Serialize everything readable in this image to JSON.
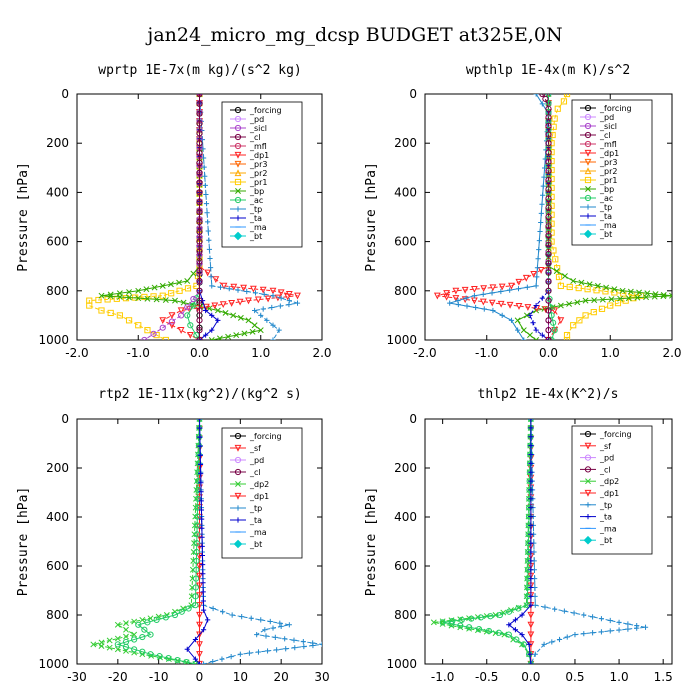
{
  "figure": {
    "title": "jan24_micro_mg_dcsp  BUDGET at325E,0N"
  },
  "chart_data": [
    {
      "type": "line",
      "title": "wprtp  1E-7x(m kg)/(s^2 kg)",
      "ylabel": "Pressure [hPa]",
      "xlabel": "",
      "xlim": [
        -2.0,
        2.0
      ],
      "ylim": [
        1000,
        0
      ],
      "x_ticks": [
        "-2.0",
        "-1.0",
        "0.0",
        "1.0",
        "2.0"
      ],
      "y_ticks": [
        "0",
        "200",
        "400",
        "600",
        "800",
        "1000"
      ],
      "legend": [
        "_forcing",
        "_pd",
        "_sicl",
        "_cl",
        "_mfl",
        "_dp1",
        "_pr3",
        "_pr2",
        "_pr1",
        "_bp",
        "_ac",
        "_tp",
        "_ta",
        "_ma",
        "_bt"
      ],
      "series": [
        {
          "name": "_forcing",
          "color": "#000000",
          "marker": "o",
          "y": [
            0,
            200,
            400,
            600,
            700,
            800,
            850,
            900,
            950,
            1000
          ],
          "values": [
            0,
            0,
            0,
            0,
            0,
            0,
            0,
            0,
            0,
            0
          ]
        },
        {
          "name": "_pr1",
          "color": "#ffcc00",
          "marker": "s",
          "y": [
            0,
            700,
            780,
            820,
            840,
            860,
            880,
            900,
            940,
            980,
            1000
          ],
          "values": [
            0,
            0,
            -0.05,
            -0.6,
            -1.8,
            -1.8,
            -1.6,
            -1.3,
            -1.0,
            -0.7,
            -0.55
          ]
        },
        {
          "name": "_bp",
          "color": "#33aa00",
          "marker": "x",
          "y": [
            0,
            700,
            760,
            800,
            820,
            840,
            880,
            920,
            960,
            1000
          ],
          "values": [
            0,
            0,
            -0.2,
            -1.0,
            -1.6,
            -0.4,
            0.3,
            0.8,
            1.0,
            0.2
          ]
        },
        {
          "name": "_dp1",
          "color": "#ff2222",
          "marker": "v",
          "y": [
            0,
            700,
            780,
            800,
            820,
            840,
            880,
            920,
            960,
            1000
          ],
          "values": [
            0,
            0.0,
            0.4,
            1.2,
            1.6,
            0.8,
            -0.3,
            -0.6,
            -0.3,
            0.0
          ]
        },
        {
          "name": "_ac",
          "color": "#22cc66",
          "marker": "o",
          "y": [
            0,
            800,
            860,
            900,
            940,
            980,
            1000
          ],
          "values": [
            0,
            0,
            -0.1,
            -0.2,
            -0.15,
            -0.05,
            0
          ]
        },
        {
          "name": "_tp",
          "color": "#2288cc",
          "marker": "+",
          "y": [
            0,
            780,
            820,
            850,
            880,
            920,
            960,
            1000
          ],
          "values": [
            0,
            0.2,
            1.2,
            1.6,
            0.9,
            1.1,
            1.3,
            1.2
          ]
        },
        {
          "name": "_ta",
          "color": "#0000cc",
          "marker": "+",
          "y": [
            0,
            800,
            880,
            920,
            960,
            1000
          ],
          "values": [
            0,
            0,
            0.1,
            0.3,
            0.2,
            0
          ]
        },
        {
          "name": "_sicl",
          "color": "#aa44cc",
          "marker": "o",
          "y": [
            0,
            800,
            900,
            950,
            1000
          ],
          "values": [
            0,
            0,
            -0.3,
            -0.6,
            -0.9
          ]
        },
        {
          "name": "_cl",
          "color": "#770044",
          "marker": "o",
          "y": [
            0,
            200,
            400,
            600,
            800,
            1000
          ],
          "values": [
            0,
            0,
            0,
            0,
            0,
            0
          ]
        }
      ]
    },
    {
      "type": "line",
      "title": "wpthlp  1E-4x(m K)/s^2",
      "ylabel": "Pressure [hPa]",
      "xlabel": "",
      "xlim": [
        -2.0,
        2.0
      ],
      "ylim": [
        1000,
        0
      ],
      "x_ticks": [
        "-2.0",
        "-1.0",
        "0.0",
        "1.0",
        "2.0"
      ],
      "y_ticks": [
        "0",
        "200",
        "400",
        "600",
        "800",
        "1000"
      ],
      "legend": [
        "_forcing",
        "_pd",
        "_sicl",
        "_cl",
        "_mfl",
        "_dp1",
        "_pr3",
        "_pr2",
        "_pr1",
        "_bp",
        "_ac",
        "_tp",
        "_ta",
        "_ma",
        "_bt"
      ],
      "series": [
        {
          "name": "_forcing",
          "color": "#aa44cc",
          "marker": "o",
          "y": [
            0,
            200,
            400,
            600,
            800,
            1000
          ],
          "values": [
            0,
            0,
            0,
            0,
            0,
            0
          ]
        },
        {
          "name": "_pr1",
          "color": "#ffcc00",
          "marker": "s",
          "y": [
            0,
            30,
            60,
            100,
            200,
            600,
            780,
            820,
            860,
            900,
            940,
            980,
            1000
          ],
          "values": [
            0.3,
            0.25,
            0.15,
            0.1,
            0.05,
            0.05,
            0.2,
            1.5,
            1.0,
            0.6,
            0.4,
            0.3,
            0.3
          ]
        },
        {
          "name": "_bp",
          "color": "#33aa00",
          "marker": "x",
          "y": [
            0,
            700,
            760,
            800,
            820,
            840,
            880,
            920,
            960,
            1000
          ],
          "values": [
            0,
            0,
            0.4,
            1.2,
            2.0,
            0.6,
            -0.2,
            -0.5,
            -0.4,
            -0.2
          ]
        },
        {
          "name": "_dp1",
          "color": "#ff2222",
          "marker": "v",
          "y": [
            0,
            700,
            780,
            800,
            820,
            840,
            880,
            920,
            960,
            1000
          ],
          "values": [
            0,
            0,
            -0.6,
            -1.5,
            -1.8,
            -1.2,
            0.1,
            0.2,
            0.1,
            0
          ]
        },
        {
          "name": "_tp",
          "color": "#2288cc",
          "marker": "+",
          "y": [
            0,
            40,
            80,
            780,
            820,
            850,
            880,
            920,
            960,
            1000
          ],
          "values": [
            -0.2,
            -0.1,
            0,
            -0.2,
            -1.2,
            -1.6,
            -0.9,
            -0.6,
            -0.5,
            -0.4
          ]
        },
        {
          "name": "_ta",
          "color": "#0000cc",
          "marker": "+",
          "y": [
            0,
            800,
            860,
            900,
            960,
            1000
          ],
          "values": [
            0,
            0,
            -0.2,
            -0.3,
            -0.2,
            0
          ]
        },
        {
          "name": "_ac",
          "color": "#22cc66",
          "marker": "o",
          "y": [
            0,
            800,
            900,
            960,
            1000
          ],
          "values": [
            0,
            0,
            0.05,
            0.1,
            0.05
          ]
        },
        {
          "name": "_sicl",
          "color": "#770044",
          "marker": "o",
          "y": [
            0,
            20,
            60,
            200,
            800,
            1000
          ],
          "values": [
            -0.1,
            -0.05,
            0,
            0,
            0,
            0
          ]
        }
      ]
    },
    {
      "type": "line",
      "title": "rtp2  1E-11x(kg^2)/(kg^2 s)",
      "ylabel": "Pressure [hPa]",
      "xlabel": "",
      "xlim": [
        -30,
        30
      ],
      "ylim": [
        1000,
        0
      ],
      "x_ticks": [
        "-30",
        "-20",
        "-10",
        "0",
        "10",
        "20",
        "30"
      ],
      "y_ticks": [
        "0",
        "200",
        "400",
        "600",
        "800",
        "1000"
      ],
      "legend": [
        "_forcing",
        "_sf",
        "_pd",
        "_cl",
        "_dp2",
        "_dp1",
        "_tp",
        "_ta",
        "_ma",
        "_bt"
      ],
      "series": [
        {
          "name": "_forcing",
          "color": "#ff2222",
          "marker": "v",
          "y": [
            0,
            200,
            400,
            600,
            800,
            1000
          ],
          "values": [
            0,
            0,
            0,
            0,
            0,
            0
          ]
        },
        {
          "name": "_dp2",
          "color": "#33cc33",
          "marker": "x",
          "y": [
            0,
            760,
            800,
            840,
            880,
            920,
            960,
            1000
          ],
          "values": [
            0,
            -2,
            -8,
            -20,
            -16,
            -26,
            -14,
            -1
          ]
        },
        {
          "name": "_dp1",
          "color": "#22cc66",
          "marker": "o",
          "y": [
            0,
            760,
            800,
            840,
            880,
            920,
            960,
            1000
          ],
          "values": [
            0,
            -1,
            -6,
            -15,
            -12,
            -20,
            -12,
            -1
          ]
        },
        {
          "name": "_tp",
          "color": "#2288cc",
          "marker": "+",
          "y": [
            0,
            760,
            800,
            840,
            860,
            880,
            920,
            960,
            1000
          ],
          "values": [
            0,
            1,
            8,
            22,
            16,
            14,
            30,
            10,
            1
          ]
        },
        {
          "name": "_ta",
          "color": "#0000cc",
          "marker": "+",
          "y": [
            0,
            780,
            820,
            860,
            900,
            940,
            980,
            1000
          ],
          "values": [
            0,
            1,
            2,
            1,
            -1,
            -3,
            -1,
            0
          ]
        }
      ]
    },
    {
      "type": "line",
      "title": "thlp2  1E-4x(K^2)/s",
      "ylabel": "Pressure [hPa]",
      "xlabel": "",
      "xlim": [
        -1.2,
        1.6
      ],
      "ylim": [
        1000,
        0
      ],
      "x_ticks": [
        "-1.0",
        "-0.5",
        "0.0",
        "0.5",
        "1.0",
        "1.5"
      ],
      "y_ticks": [
        "0",
        "200",
        "400",
        "600",
        "800",
        "1000"
      ],
      "legend": [
        "_forcing",
        "_sf",
        "_pd",
        "_cl",
        "_dp2",
        "_dp1",
        "_tp",
        "_ta",
        "_ma",
        "_bt"
      ],
      "series": [
        {
          "name": "_forcing",
          "color": "#ff2222",
          "marker": "v",
          "y": [
            0,
            200,
            400,
            600,
            800,
            1000
          ],
          "values": [
            0,
            0,
            0,
            0,
            0,
            0
          ]
        },
        {
          "name": "_dp2",
          "color": "#33cc33",
          "marker": "x",
          "y": [
            0,
            760,
            800,
            830,
            850,
            880,
            920,
            960,
            1000
          ],
          "values": [
            0,
            -0.05,
            -0.4,
            -1.1,
            -0.8,
            -0.3,
            -0.1,
            -0.02,
            0
          ]
        },
        {
          "name": "_dp1",
          "color": "#22cc66",
          "marker": "o",
          "y": [
            0,
            760,
            800,
            830,
            850,
            880,
            920,
            960,
            1000
          ],
          "values": [
            0,
            -0.04,
            -0.35,
            -1.0,
            -0.7,
            -0.25,
            -0.08,
            -0.02,
            0
          ]
        },
        {
          "name": "_tp",
          "color": "#2288cc",
          "marker": "+",
          "y": [
            0,
            760,
            800,
            830,
            850,
            880,
            920,
            960,
            1000
          ],
          "values": [
            0,
            0.05,
            0.6,
            1.0,
            1.3,
            0.5,
            0.15,
            0.05,
            0
          ]
        },
        {
          "name": "_ta",
          "color": "#0000cc",
          "marker": "+",
          "y": [
            0,
            760,
            800,
            840,
            880,
            920,
            1000
          ],
          "values": [
            0,
            0,
            -0.1,
            -0.25,
            -0.1,
            -0.02,
            0
          ]
        }
      ]
    }
  ]
}
